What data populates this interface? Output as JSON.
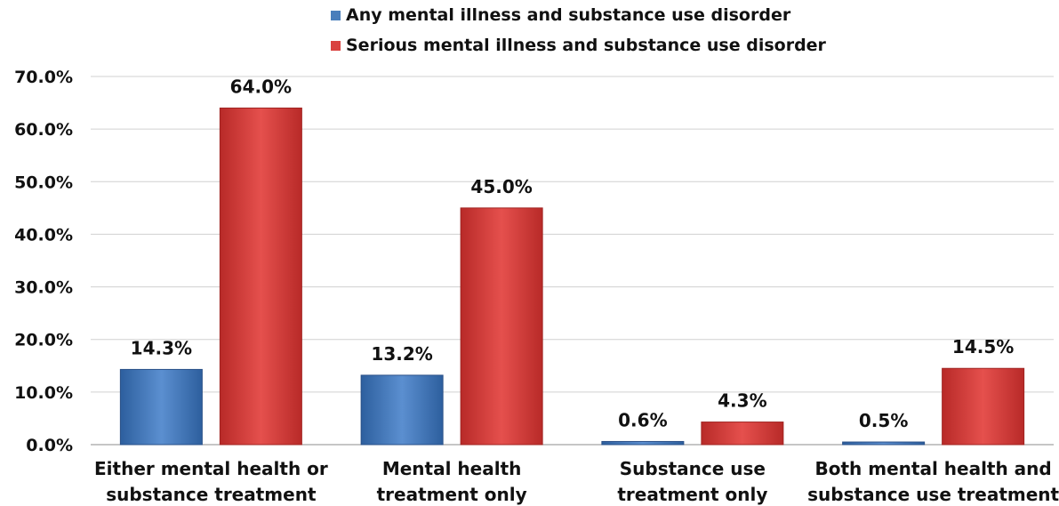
{
  "chart_data": {
    "type": "bar",
    "categories": [
      [
        "Either mental health or",
        "substance treatment"
      ],
      [
        "Mental health",
        "treatment only"
      ],
      [
        "Substance use",
        "treatment only"
      ],
      [
        "Both mental health and",
        "substance use treatment"
      ]
    ],
    "series": [
      {
        "name": "Any mental illness and substance use disorder",
        "values": [
          14.3,
          13.2,
          0.6,
          0.5
        ],
        "labels": [
          "14.3%",
          "13.2%",
          "0.6%",
          "0.5%"
        ],
        "color": "#4a7ebb"
      },
      {
        "name": "Serious mental illness and substance use disorder",
        "values": [
          64.0,
          45.0,
          4.3,
          14.5
        ],
        "labels": [
          "64.0%",
          "45.0%",
          "4.3%",
          "14.5%"
        ],
        "color": "#d9413f"
      }
    ],
    "ylim": [
      0,
      70
    ],
    "yticks": [
      "0.0%",
      "10.0%",
      "20.0%",
      "30.0%",
      "40.0%",
      "50.0%",
      "60.0%",
      "70.0%"
    ],
    "grid": true,
    "legend": "top"
  }
}
